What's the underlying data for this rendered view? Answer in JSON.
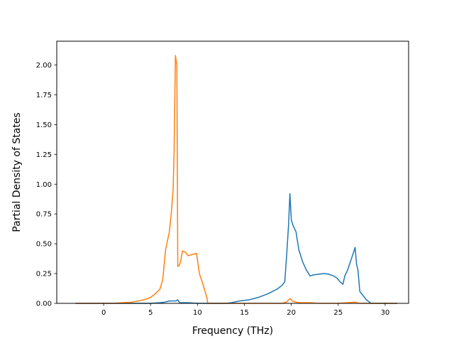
{
  "chart_data": {
    "type": "line",
    "xlabel": "Frequency (THz)",
    "ylabel": "Partial Density of States",
    "xlim": [
      -5,
      32.5
    ],
    "ylim": [
      0,
      2.2
    ],
    "grid": false,
    "x_ticks": [
      0,
      5,
      10,
      15,
      20,
      25,
      30
    ],
    "x_tick_labels": [
      "0",
      "5",
      "10",
      "15",
      "20",
      "25",
      "30"
    ],
    "y_ticks": [
      0,
      0.25,
      0.5,
      0.75,
      1.0,
      1.25,
      1.5,
      1.75,
      2.0
    ],
    "y_tick_labels": [
      "0.00",
      "0.25",
      "0.50",
      "0.75",
      "1.00",
      "1.25",
      "1.50",
      "1.75",
      "2.00"
    ],
    "series": [
      {
        "color": "#1f77b4",
        "x": [
          -3,
          5,
          6,
          6.5,
          7.0,
          7.5,
          7.7,
          7.9,
          8.1,
          9,
          10,
          11,
          12,
          13,
          13.6,
          14.5,
          15.5,
          16.5,
          17.5,
          18.5,
          19.0,
          19.3,
          19.5,
          19.7,
          19.85,
          20.0,
          20.2,
          20.5,
          20.8,
          21.2,
          21.6,
          22.0,
          22.4,
          23.0,
          23.5,
          24.0,
          24.5,
          24.9,
          25.2,
          25.5,
          25.7,
          26.0,
          26.3,
          26.6,
          26.8,
          26.95,
          27.1,
          27.3,
          27.6,
          28.0,
          28.5,
          29,
          30,
          31.3
        ],
        "y": [
          0,
          0,
          0.005,
          0.01,
          0.02,
          0.02,
          0.02,
          0.03,
          0.005,
          0.005,
          0,
          0,
          0,
          0,
          0.005,
          0.02,
          0.03,
          0.05,
          0.08,
          0.12,
          0.15,
          0.18,
          0.4,
          0.65,
          0.92,
          0.7,
          0.65,
          0.6,
          0.45,
          0.35,
          0.28,
          0.23,
          0.24,
          0.245,
          0.25,
          0.245,
          0.23,
          0.21,
          0.18,
          0.16,
          0.23,
          0.28,
          0.35,
          0.42,
          0.47,
          0.33,
          0.28,
          0.1,
          0.07,
          0.03,
          0.0,
          0,
          0,
          0
        ]
      },
      {
        "color": "#ff7f0e",
        "x": [
          -3,
          0,
          1,
          2,
          3,
          4,
          4.5,
          5,
          5.5,
          6.0,
          6.3,
          6.6,
          7.0,
          7.2,
          7.4,
          7.5,
          7.65,
          7.8,
          7.9,
          8.05,
          8.2,
          8.4,
          8.7,
          9.0,
          9.5,
          9.9,
          10.2,
          10.5,
          11.0,
          11.1,
          12,
          13,
          15,
          17,
          19,
          19.5,
          19.7,
          19.9,
          20.1,
          20.5,
          21.0,
          22,
          23,
          24,
          25,
          26,
          26.8,
          27.2,
          28,
          29,
          30,
          31.3
        ],
        "y": [
          0,
          0,
          0.0,
          0.005,
          0.01,
          0.025,
          0.035,
          0.05,
          0.08,
          0.12,
          0.2,
          0.45,
          0.6,
          0.75,
          0.95,
          1.25,
          2.08,
          2.0,
          0.31,
          0.32,
          0.35,
          0.44,
          0.43,
          0.4,
          0.41,
          0.42,
          0.25,
          0.18,
          0.05,
          0.0,
          0,
          0,
          0,
          0,
          0.0,
          0.01,
          0.03,
          0.04,
          0.02,
          0.01,
          0.005,
          0.005,
          0,
          0,
          0,
          0.005,
          0.01,
          0.0,
          0,
          0,
          0,
          0
        ]
      }
    ]
  }
}
